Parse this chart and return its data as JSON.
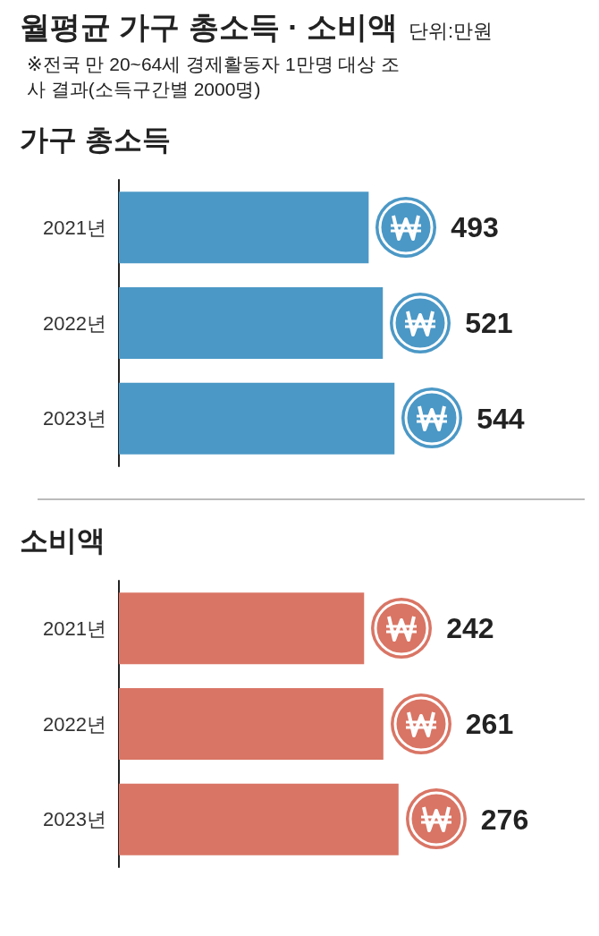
{
  "chart_data": [
    {
      "type": "bar",
      "orientation": "horizontal",
      "title": "월평균 가구 총소득 · 소비액",
      "subtitle": "가구 총소득",
      "annotations": [
        "단위:만원",
        "※전국 만 20~64세 경제활동자 1만명 대상 조사 결과(소득구간별 2000명)"
      ],
      "categories": [
        "2021년",
        "2022년",
        "2023년"
      ],
      "values": [
        493,
        521,
        544
      ],
      "color": "#4b98c6",
      "data_labels": true
    },
    {
      "type": "bar",
      "orientation": "horizontal",
      "title": "소비액",
      "categories": [
        "2021년",
        "2022년",
        "2023년"
      ],
      "values": [
        242,
        261,
        276
      ],
      "color": "#d97565",
      "data_labels": true
    }
  ]
}
